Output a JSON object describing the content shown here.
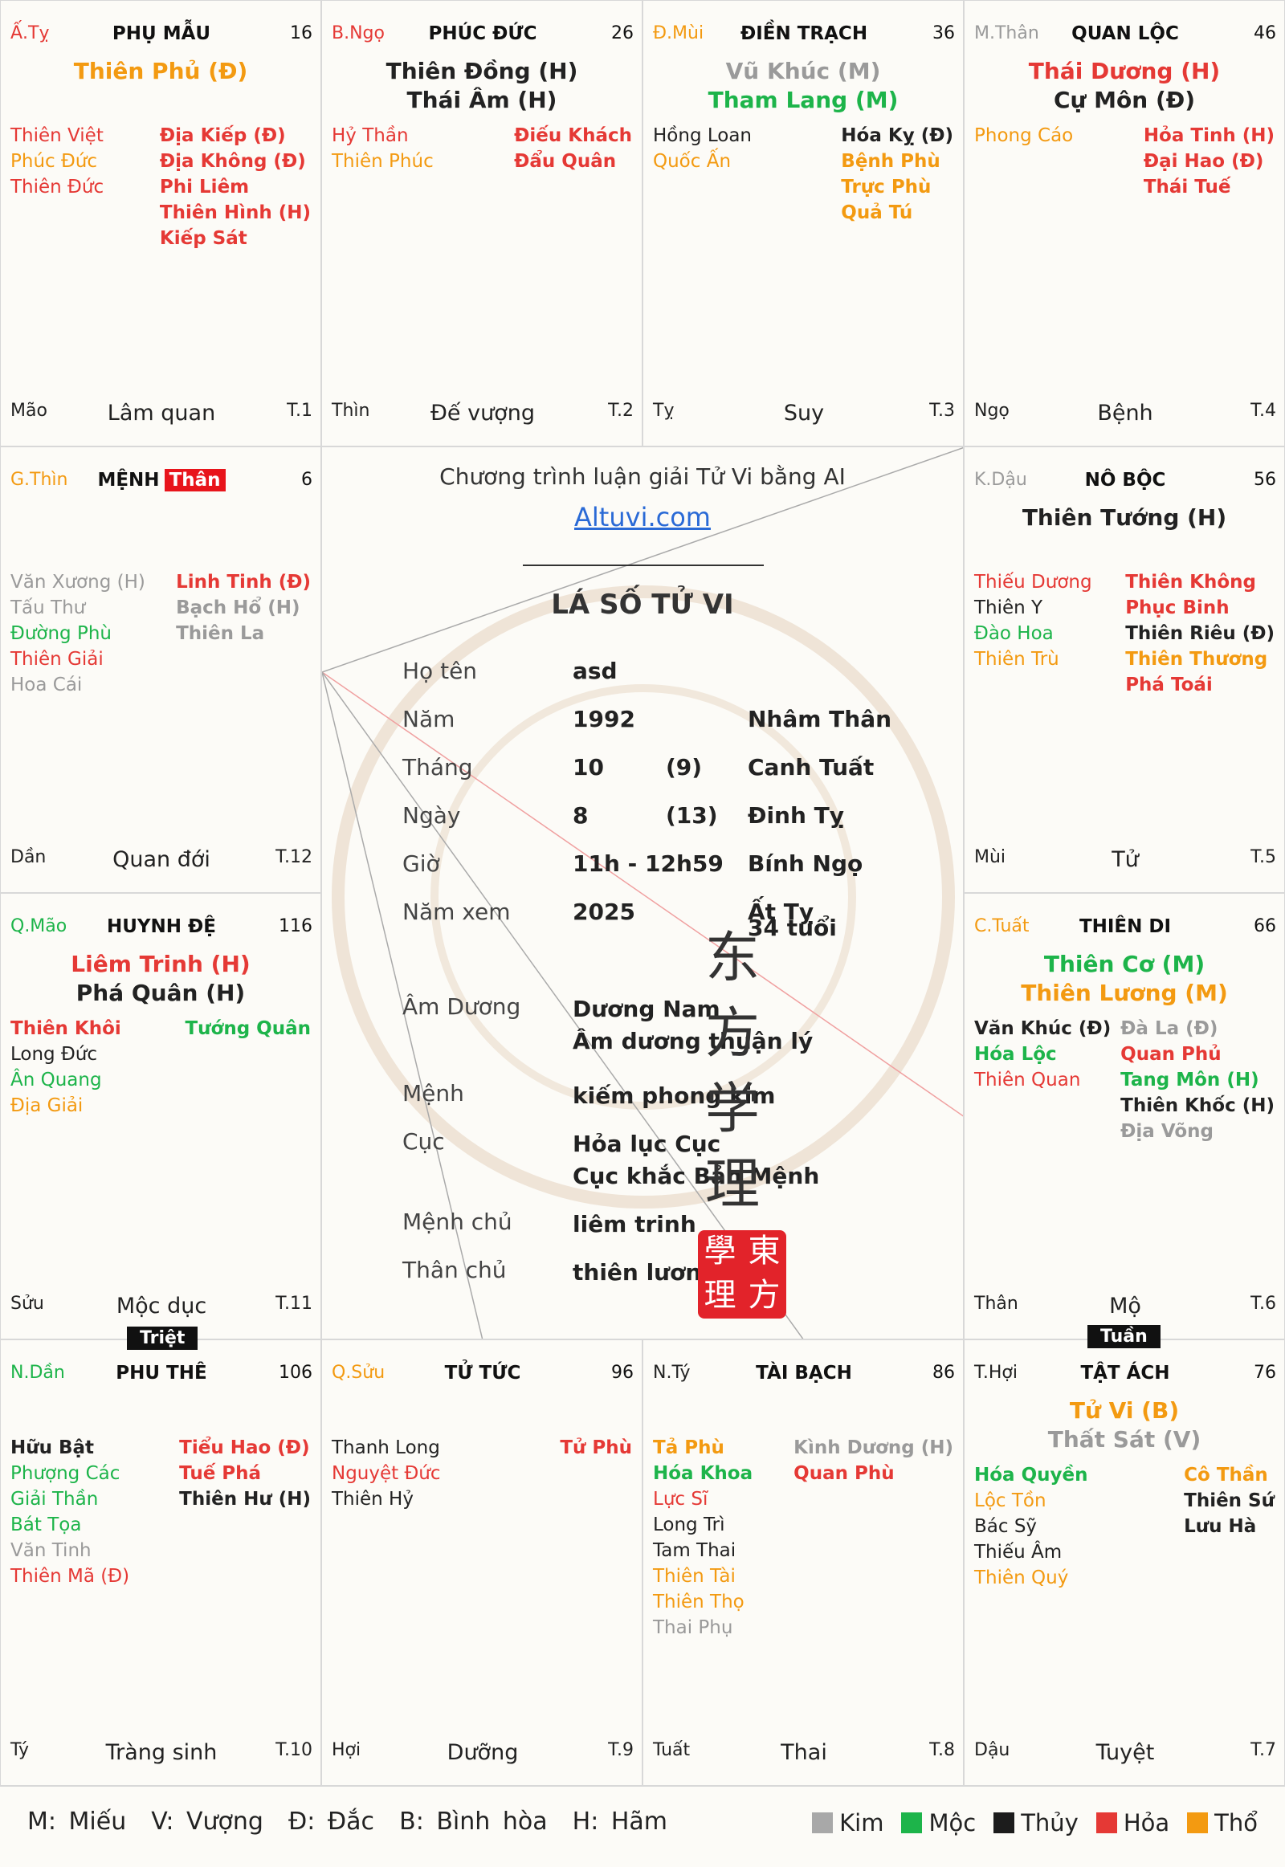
{
  "cells": {
    "ty_top": {
      "can": "Ấ.Tỵ",
      "can_color": "#e53935",
      "palace": "PHỤ MẪU",
      "age": "16",
      "majors": [
        {
          "t": "Thiên Phủ (Đ)",
          "c": "orange"
        }
      ],
      "left": [
        {
          "t": "Thiên Việt",
          "c": "red"
        },
        {
          "t": "Phúc Đức",
          "c": "orange"
        },
        {
          "t": "Thiên Đức",
          "c": "red"
        }
      ],
      "right": [
        {
          "t": "Địa Kiếp (Đ)",
          "c": "red b"
        },
        {
          "t": "Địa Không (Đ)",
          "c": "red b"
        },
        {
          "t": "Phi Liêm",
          "c": "red b"
        },
        {
          "t": "Thiên Hình (H)",
          "c": "red b"
        },
        {
          "t": "Kiếp Sát",
          "c": "red b"
        }
      ],
      "zhi": "Mão",
      "stage": "Lâm quan",
      "tnum": "T.1"
    },
    "ngo_top": {
      "can": "B.Ngọ",
      "can_color": "#e53935",
      "palace": "PHÚC ĐỨC",
      "age": "26",
      "majors": [
        {
          "t": "Thiên Đồng (H)",
          "c": "black"
        },
        {
          "t": "Thái Âm (H)",
          "c": "black"
        }
      ],
      "left": [
        {
          "t": "Hỷ Thần",
          "c": "red"
        },
        {
          "t": "Thiên Phúc",
          "c": "orange"
        }
      ],
      "right": [
        {
          "t": "Điếu Khách",
          "c": "red b"
        },
        {
          "t": "Đẩu Quân",
          "c": "red b"
        }
      ],
      "zhi": "Thìn",
      "stage": "Đế vượng",
      "tnum": "T.2"
    },
    "mui_top": {
      "can": "Đ.Mùi",
      "can_color": "#f39a11",
      "palace": "ĐIỀN TRẠCH",
      "age": "36",
      "majors": [
        {
          "t": "Vũ Khúc (M)",
          "c": "gray"
        },
        {
          "t": "Tham Lang (M)",
          "c": "green"
        }
      ],
      "left": [
        {
          "t": "Hồng Loan",
          "c": "black"
        },
        {
          "t": "Quốc Ấn",
          "c": "orange"
        }
      ],
      "right": [
        {
          "t": "Hóa Kỵ (Đ)",
          "c": "black b"
        },
        {
          "t": "Bệnh Phù",
          "c": "orange b"
        },
        {
          "t": "Trực Phù",
          "c": "orange b"
        },
        {
          "t": "Quả Tú",
          "c": "orange b"
        }
      ],
      "zhi": "Tỵ",
      "stage": "Suy",
      "tnum": "T.3"
    },
    "than_top": {
      "can": "M.Thân",
      "can_color": "#9a9a9a",
      "palace": "QUAN LỘC",
      "age": "46",
      "majors": [
        {
          "t": "Thái Dương (H)",
          "c": "red"
        },
        {
          "t": "Cự Môn (Đ)",
          "c": "black"
        }
      ],
      "left": [
        {
          "t": "Phong Cáo",
          "c": "orange"
        }
      ],
      "right": [
        {
          "t": "Hỏa Tinh (H)",
          "c": "red b"
        },
        {
          "t": "Đại Hao (Đ)",
          "c": "red b"
        },
        {
          "t": "Thái Tuế",
          "c": "red b"
        }
      ],
      "zhi": "Ngọ",
      "stage": "Bệnh",
      "tnum": "T.4"
    },
    "thin_left": {
      "can": "G.Thìn",
      "can_color": "#f39a11",
      "palace": "MỆNH",
      "than": "Thân",
      "age": "6",
      "majors": [],
      "left": [
        {
          "t": "Văn Xương (H)",
          "c": "gray"
        },
        {
          "t": "Tấu Thư",
          "c": "gray"
        },
        {
          "t": "Đường Phù",
          "c": "green"
        },
        {
          "t": "Thiên Giải",
          "c": "red"
        },
        {
          "t": "Hoa Cái",
          "c": "gray"
        }
      ],
      "right": [
        {
          "t": "Linh Tinh (Đ)",
          "c": "red b"
        },
        {
          "t": "Bạch Hổ (H)",
          "c": "gray b"
        },
        {
          "t": "Thiên La",
          "c": "gray b"
        }
      ],
      "zhi": "Dần",
      "stage": "Quan đới",
      "tnum": "T.12"
    },
    "dau_right": {
      "can": "K.Dậu",
      "can_color": "#9a9a9a",
      "palace": "NÔ BỘC",
      "age": "56",
      "majors": [
        {
          "t": "Thiên Tướng (H)",
          "c": "black"
        }
      ],
      "left": [
        {
          "t": "Thiếu Dương",
          "c": "red"
        },
        {
          "t": "Thiên Y",
          "c": "black"
        },
        {
          "t": "Đào Hoa",
          "c": "green"
        },
        {
          "t": "Thiên Trù",
          "c": "orange"
        }
      ],
      "right": [
        {
          "t": "Thiên Không",
          "c": "red b"
        },
        {
          "t": "Phục Binh",
          "c": "red b"
        },
        {
          "t": "Thiên Riêu (Đ)",
          "c": "black b"
        },
        {
          "t": "Thiên Thương",
          "c": "orange b"
        },
        {
          "t": "Phá Toái",
          "c": "red b"
        }
      ],
      "zhi": "Mùi",
      "stage": "Tử",
      "tnum": "T.5"
    },
    "mao_left": {
      "can": "Q.Mão",
      "can_color": "#1db44a",
      "palace": "HUYNH ĐỆ",
      "age": "116",
      "majors": [
        {
          "t": "Liêm Trinh (H)",
          "c": "red"
        },
        {
          "t": "Phá Quân (H)",
          "c": "black"
        }
      ],
      "left": [
        {
          "t": "Thiên Khôi",
          "c": "red b"
        },
        {
          "t": "Long Đức",
          "c": "black"
        },
        {
          "t": "Ân Quang",
          "c": "green"
        },
        {
          "t": "Địa Giải",
          "c": "orange"
        }
      ],
      "right": [
        {
          "t": "Tướng Quân",
          "c": "green b"
        }
      ],
      "zhi": "Sửu",
      "stage": "Mộc dục",
      "tnum": "T.11"
    },
    "tuat_right": {
      "can": "C.Tuất",
      "can_color": "#f39a11",
      "palace": "THIÊN DI",
      "age": "66",
      "majors": [
        {
          "t": "Thiên Cơ (M)",
          "c": "green"
        },
        {
          "t": "Thiên Lương (M)",
          "c": "orange"
        }
      ],
      "left": [
        {
          "t": "Văn Khúc (Đ)",
          "c": "black b"
        },
        {
          "t": "Hóa Lộc",
          "c": "green b"
        },
        {
          "t": "Thiên Quan",
          "c": "red"
        }
      ],
      "right": [
        {
          "t": "Đà La (Đ)",
          "c": "gray b"
        },
        {
          "t": "Quan Phủ",
          "c": "red b"
        },
        {
          "t": "Tang Môn (H)",
          "c": "green b"
        },
        {
          "t": "Thiên Khốc (H)",
          "c": "black b"
        },
        {
          "t": "Địa Võng",
          "c": "gray b"
        }
      ],
      "zhi": "Thân",
      "stage": "Mộ",
      "tnum": "T.6"
    },
    "dan_bot": {
      "can": "N.Dần",
      "can_color": "#1db44a",
      "palace": "PHU THÊ",
      "age": "106",
      "majors": [],
      "left": [
        {
          "t": "Hữu Bật",
          "c": "black b"
        },
        {
          "t": "Phượng Các",
          "c": "green"
        },
        {
          "t": "Giải Thần",
          "c": "green"
        },
        {
          "t": "Bát Tọa",
          "c": "green"
        },
        {
          "t": "Văn Tinh",
          "c": "gray"
        },
        {
          "t": "Thiên Mã (Đ)",
          "c": "red"
        }
      ],
      "right": [
        {
          "t": "Tiểu Hao (Đ)",
          "c": "red b"
        },
        {
          "t": "Tuế Phá",
          "c": "red b"
        },
        {
          "t": "Thiên Hư (H)",
          "c": "black b"
        }
      ],
      "zhi": "Tý",
      "stage": "Tràng sinh",
      "tnum": "T.10"
    },
    "suu_bot": {
      "can": "Q.Sửu",
      "can_color": "#f39a11",
      "palace": "TỬ TỨC",
      "age": "96",
      "majors": [],
      "left": [
        {
          "t": "Thanh Long",
          "c": "black"
        },
        {
          "t": "Nguyệt Đức",
          "c": "red"
        },
        {
          "t": "Thiên Hỷ",
          "c": "black"
        }
      ],
      "right": [
        {
          "t": "Tử Phù",
          "c": "red b"
        }
      ],
      "zhi": "Hợi",
      "stage": "Dưỡng",
      "tnum": "T.9"
    },
    "ty_bot": {
      "can": "N.Tý",
      "can_color": "#222",
      "palace": "TÀI BẠCH",
      "age": "86",
      "majors": [],
      "left": [
        {
          "t": "Tả Phù",
          "c": "orange b"
        },
        {
          "t": "Hóa Khoa",
          "c": "green b"
        },
        {
          "t": "Lực Sĩ",
          "c": "red"
        },
        {
          "t": "Long Trì",
          "c": "black"
        },
        {
          "t": "Tam Thai",
          "c": "black"
        },
        {
          "t": "Thiên Tài",
          "c": "orange"
        },
        {
          "t": "Thiên Thọ",
          "c": "orange"
        },
        {
          "t": "Thai Phụ",
          "c": "gray"
        }
      ],
      "right": [
        {
          "t": "Kình Dương (H)",
          "c": "gray b"
        },
        {
          "t": "Quan Phù",
          "c": "red b"
        }
      ],
      "zhi": "Tuất",
      "stage": "Thai",
      "tnum": "T.8"
    },
    "hoi_bot": {
      "can": "T.Hợi",
      "can_color": "#222",
      "palace": "TẬT ÁCH",
      "age": "76",
      "majors": [
        {
          "t": "Tử Vi (B)",
          "c": "orange"
        },
        {
          "t": "Thất Sát (V)",
          "c": "gray"
        }
      ],
      "left": [
        {
          "t": "Hóa Quyền",
          "c": "green b"
        },
        {
          "t": "Lộc Tồn",
          "c": "orange"
        },
        {
          "t": "Bác Sỹ",
          "c": "black"
        },
        {
          "t": "Thiếu Âm",
          "c": "black"
        },
        {
          "t": "Thiên Quý",
          "c": "orange"
        }
      ],
      "right": [
        {
          "t": "Cô Thần",
          "c": "orange b"
        },
        {
          "t": "Thiên Sứ",
          "c": "black b"
        },
        {
          "t": "Lưu Hà",
          "c": "black b"
        }
      ],
      "zhi": "Dậu",
      "stage": "Tuyệt",
      "tnum": "T.7"
    }
  },
  "labels": {
    "triet": "Triệt",
    "tuan": "Tuần"
  },
  "center": {
    "intro": "Chương trình luận giải Tử Vi bằng AI",
    "link": "Altuvi.com",
    "title": "LÁ SỐ TỬ VI",
    "rows": [
      {
        "k": "Họ tên",
        "v": "asd",
        "x": "",
        "y": ""
      },
      {
        "k": "Năm",
        "v": "1992",
        "x": "",
        "y": "Nhâm Thân"
      },
      {
        "k": "Tháng",
        "v": "10",
        "x": "(9)",
        "y": "Canh Tuất"
      },
      {
        "k": "Ngày",
        "v": "8",
        "x": "(13)",
        "y": "Đinh Tỵ"
      },
      {
        "k": "Giờ",
        "v": "11h - 12h59",
        "x": "",
        "y": "Bính Ngọ"
      },
      {
        "k": "Năm xem",
        "v": "2025",
        "x": "",
        "y": "Ất Tỵ"
      }
    ],
    "age_note": "34 tuổi",
    "rows2": [
      {
        "k": "Âm Dương",
        "v": "Dương Nam",
        "v2": "Âm dương thuận lý"
      },
      {
        "k": "Mệnh",
        "v": "kiếm phong kim",
        "v2": ""
      },
      {
        "k": "Cục",
        "v": "Hỏa lục Cục",
        "v2": "Cục khắc Bản Mệnh"
      },
      {
        "k": "Mệnh chủ",
        "v": "liêm trinh",
        "v2": ""
      },
      {
        "k": "Thân chủ",
        "v": "thiên lương",
        "v2": ""
      }
    ],
    "calligraphy": [
      "东",
      "方",
      "学",
      "理"
    ],
    "seal": [
      "學",
      "東",
      "理",
      "方"
    ]
  },
  "legend": {
    "left": "M: Miếu  V: Vượng  Đ: Đắc  B: Bình hòa  H: Hãm",
    "items": [
      {
        "name": "Kim",
        "color": "#a8a8a8"
      },
      {
        "name": "Mộc",
        "color": "#1db44a"
      },
      {
        "name": "Thủy",
        "color": "#1c1c1c"
      },
      {
        "name": "Hỏa",
        "color": "#e53935"
      },
      {
        "name": "Thổ",
        "color": "#f39a11"
      }
    ]
  }
}
